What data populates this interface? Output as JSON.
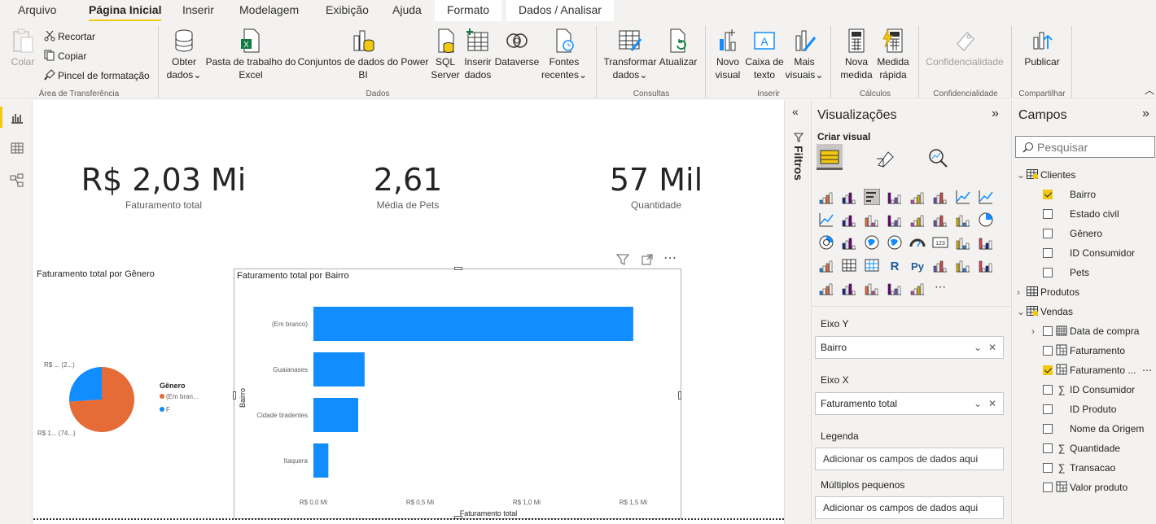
{
  "menu": {
    "tabs": [
      {
        "label": "Arquivo"
      },
      {
        "label": "Página Inicial"
      },
      {
        "label": "Inserir"
      },
      {
        "label": "Modelagem"
      },
      {
        "label": "Exibição"
      },
      {
        "label": "Ajuda"
      },
      {
        "label": "Formato"
      },
      {
        "label": "Dados / Analisar"
      }
    ]
  },
  "ribbon": {
    "clipboard": {
      "paste": "Colar",
      "cut": "Recortar",
      "copy": "Copiar",
      "format_painter": "Pincel de formatação",
      "group": "Área de Transferência"
    },
    "data": {
      "get_data": [
        "Obter",
        "dados"
      ],
      "excel": [
        "Pasta de trabalho do",
        "Excel"
      ],
      "datasets": [
        "Conjuntos de dados do Power",
        "BI"
      ],
      "sql": [
        "SQL",
        "Server"
      ],
      "enter_data": [
        "Inserir",
        "dados"
      ],
      "dataverse": "Dataverse",
      "recent": [
        "Fontes",
        "recentes"
      ],
      "group": "Dados"
    },
    "queries": {
      "transform": [
        "Transformar",
        "dados"
      ],
      "refresh": "Atualizar",
      "group": "Consultas"
    },
    "insert": {
      "new_visual": [
        "Novo",
        "visual"
      ],
      "textbox": [
        "Caixa de",
        "texto"
      ],
      "more_visuals": [
        "Mais",
        "visuais"
      ],
      "group": "Inserir"
    },
    "calc": {
      "new_measure": [
        "Nova",
        "medida"
      ],
      "quick_measure": [
        "Medida",
        "rápida"
      ],
      "group": "Cálculos"
    },
    "sensitivity": {
      "label": "Confidencialidade",
      "group": "Confidencialidade"
    },
    "share": {
      "publish": "Publicar",
      "group": "Compartilhar"
    }
  },
  "kpis": [
    {
      "value": "R$ 2,03 Mi",
      "label": "Faturamento total"
    },
    {
      "value": "2,61",
      "label": "Média de Pets"
    },
    {
      "value": "57 Mil",
      "label": "Quantidade"
    }
  ],
  "pie": {
    "title": "Faturamento total por Gênero",
    "legend_title": "Gênero",
    "label_top": "R$ ... (2...)",
    "label_bottom": "R$ 1... (74...)",
    "chart_data": {
      "type": "pie",
      "categories": [
        "(Em bran...",
        "F"
      ],
      "values": [
        74,
        26
      ],
      "colors": [
        "#e66c37",
        "#118dff"
      ]
    }
  },
  "bar": {
    "title": "Faturamento total por Bairro",
    "xlabel": "Faturamento total",
    "ylabel": "Bairro",
    "chart_data": {
      "type": "bar",
      "orientation": "horizontal",
      "categories": [
        "(Em branco)",
        "Guaianases",
        "Cidade tiradentes",
        "Itaquera"
      ],
      "values": [
        1.5,
        0.24,
        0.21,
        0.07
      ],
      "unit": "R$ Mi",
      "xlim": [
        0,
        1.55
      ],
      "ticks": [
        0,
        0.5,
        1.0,
        1.5
      ],
      "tick_labels": [
        "R$ 0,0 Mi",
        "R$ 0,5 Mi",
        "R$ 1,0 Mi",
        "R$ 1,5 Mi"
      ],
      "color": "#118dff"
    }
  },
  "filters": {
    "label": "Filtros"
  },
  "viz": {
    "title": "Visualizações",
    "build_visual": "Criar visual",
    "wells": [
      {
        "label": "Eixo Y",
        "value": "Bairro"
      },
      {
        "label": "Eixo X",
        "value": "Faturamento total"
      },
      {
        "label": "Legenda",
        "placeholder": "Adicionar os campos de dados aqui"
      },
      {
        "label": "Múltiplos pequenos",
        "placeholder": "Adicionar os campos de dados aqui"
      }
    ]
  },
  "fields": {
    "title": "Campos",
    "search_placeholder": "Pesquisar",
    "tables": [
      {
        "name": "Clientes",
        "fields": [
          "Bairro",
          "Estado civil",
          "Gênero",
          "ID Consumidor",
          "Pets"
        ]
      },
      {
        "name": "Produtos"
      },
      {
        "name": "Vendas",
        "fields": [
          "Data de compra",
          "Faturamento",
          "Faturamento ...",
          "ID Consumidor",
          "ID Produto",
          "Nome da Origem",
          "Quantidade",
          "Transacao",
          "Valor produto"
        ]
      }
    ]
  }
}
